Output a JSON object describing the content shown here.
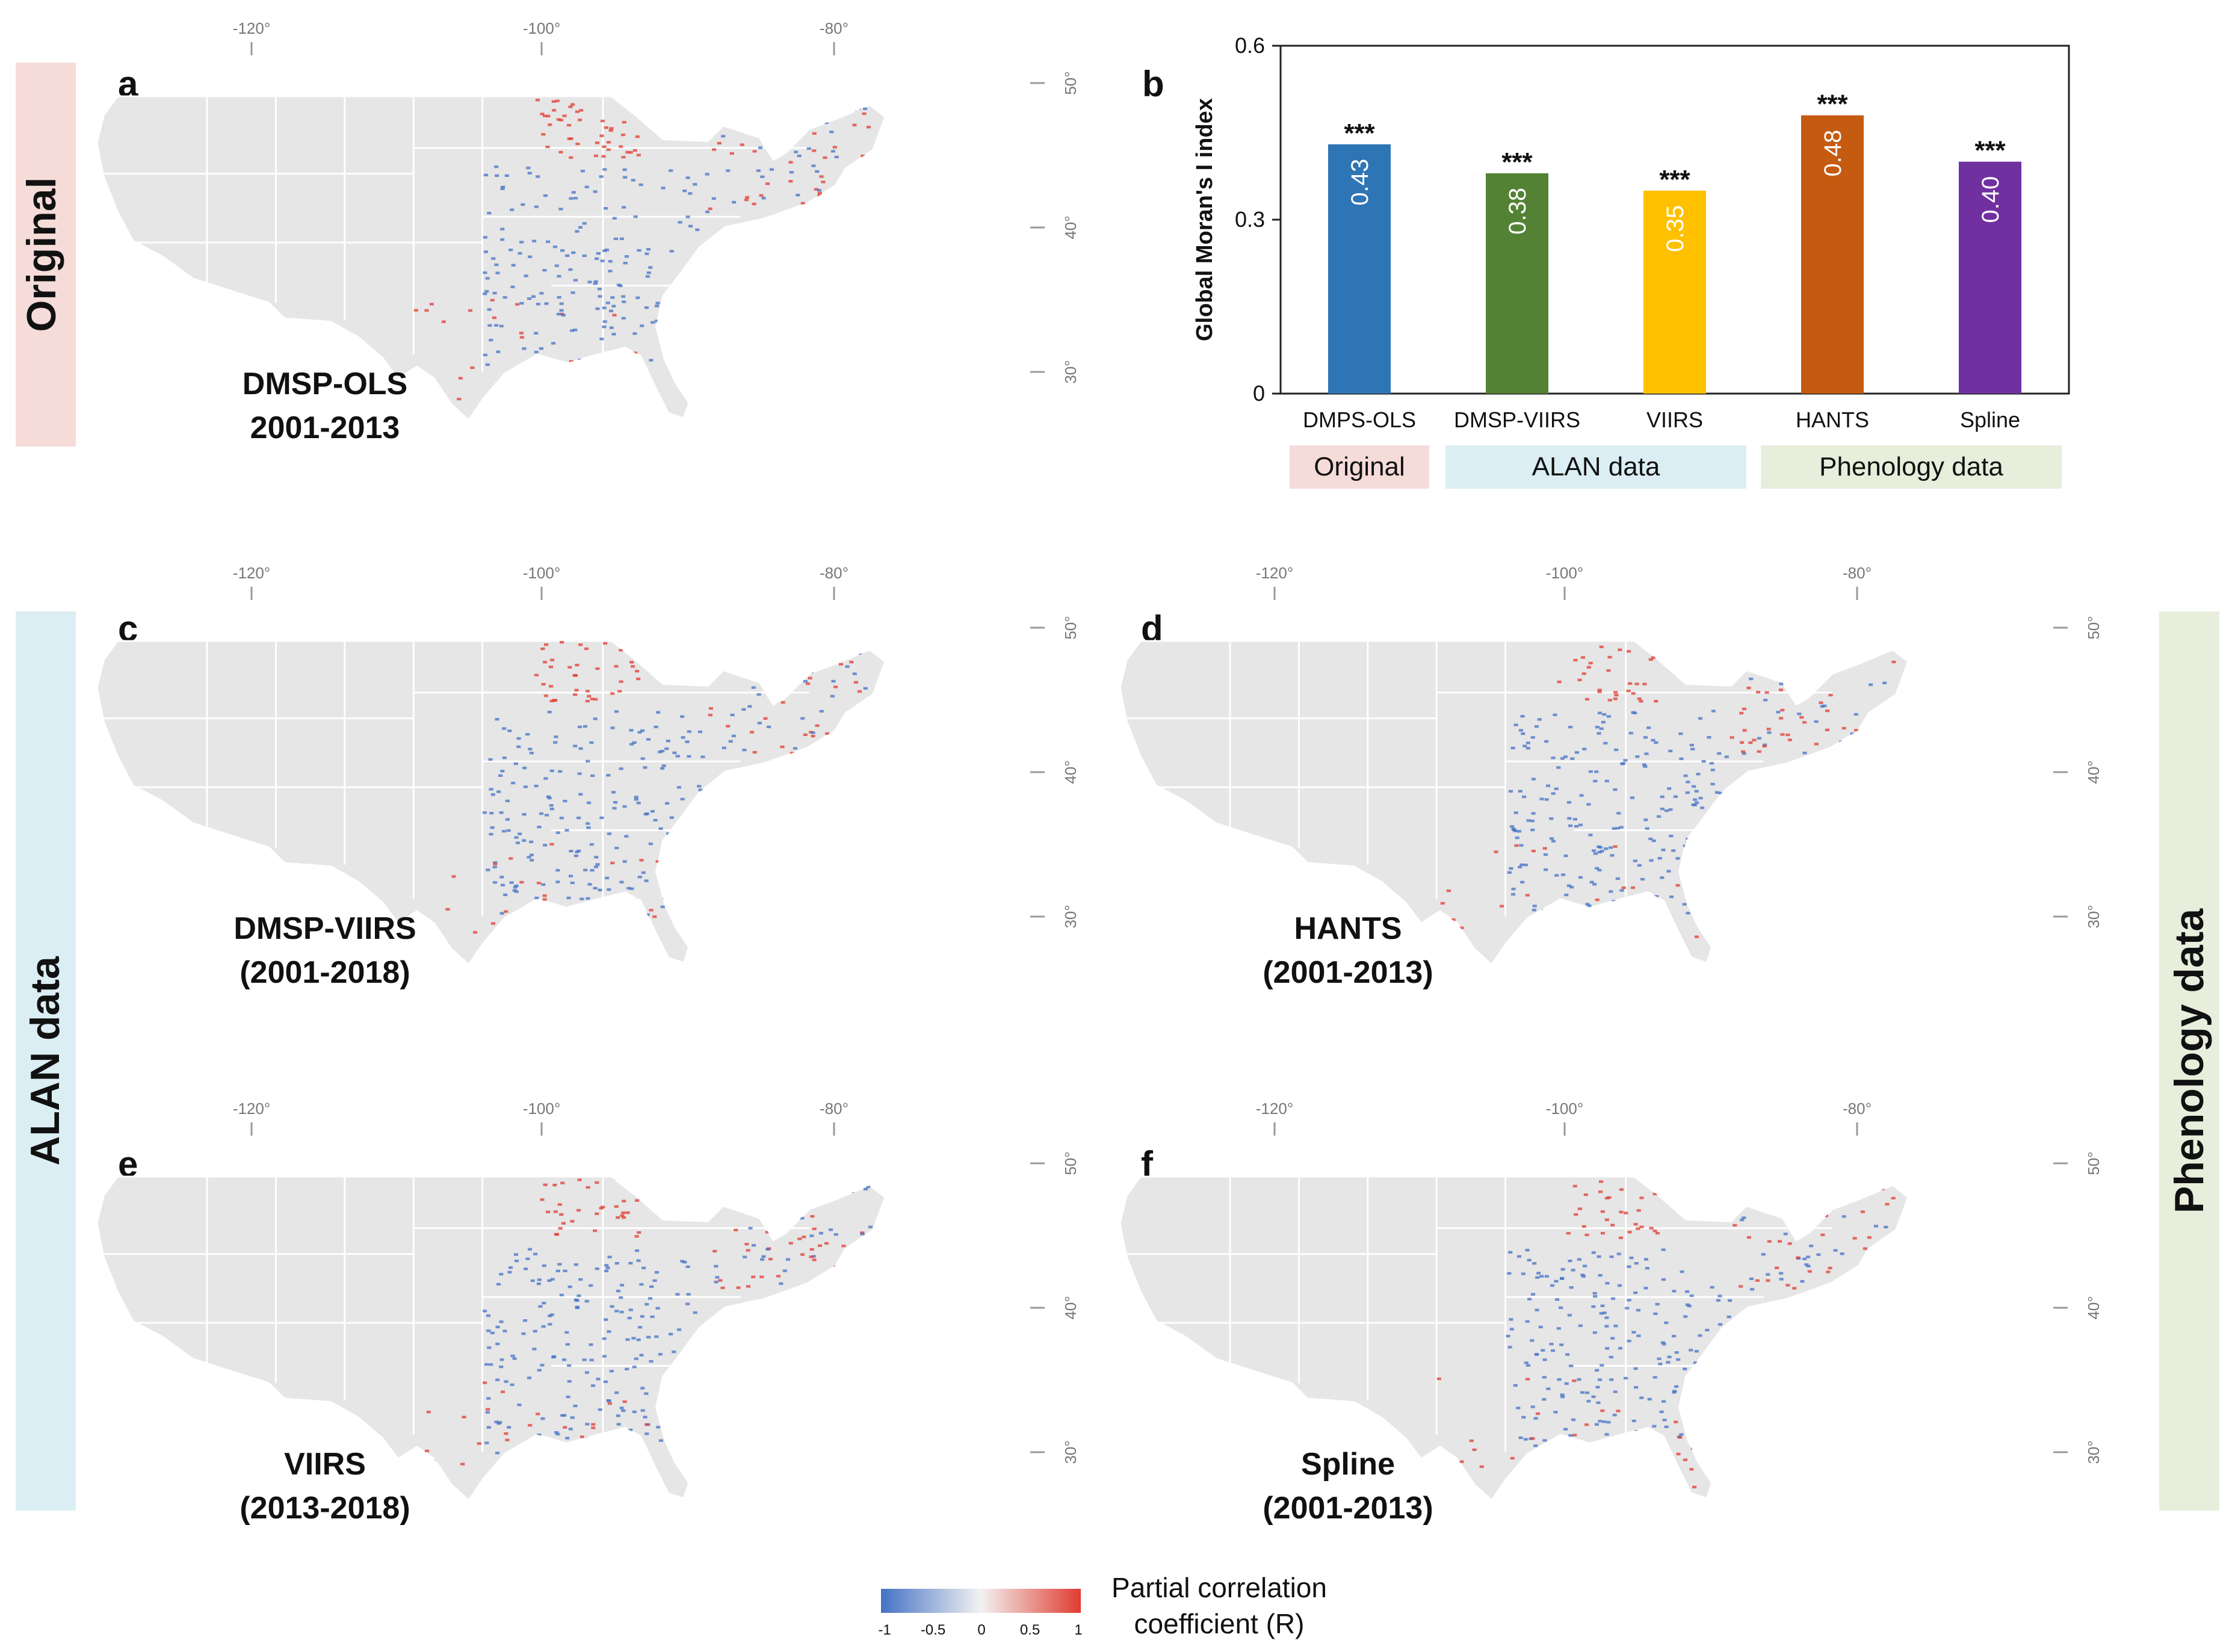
{
  "side_labels": {
    "original": "Original",
    "alan": "ALAN data",
    "phenology": "Phenology data"
  },
  "maps": [
    {
      "letter": "a",
      "line1": "DMSP-OLS",
      "line2": "2001-2013"
    },
    {
      "letter": "c",
      "line1": "DMSP-VIIRS",
      "line2": "(2001-2018)"
    },
    {
      "letter": "d",
      "line1": "HANTS",
      "line2": "(2001-2013)"
    },
    {
      "letter": "e",
      "line1": "VIIRS",
      "line2": "(2013-2018)"
    },
    {
      "letter": "f",
      "line1": "Spline",
      "line2": "(2001-2013)"
    }
  ],
  "axis_ticks": {
    "lon": [
      "-120°",
      "-100°",
      "-80°"
    ],
    "lat": [
      "50°",
      "40°",
      "30°"
    ]
  },
  "chart_panel_letter": "b",
  "chart_data": {
    "type": "bar",
    "title": "",
    "xlabel": "",
    "ylabel": "Global Moran's I index",
    "ylim": [
      0,
      0.6
    ],
    "yticks": [
      0,
      0.3,
      0.6
    ],
    "ytick_labels": [
      "0",
      "0.3",
      "0.6"
    ],
    "categories": [
      "DMPS-OLS",
      "DMSP-VIIRS",
      "VIIRS",
      "HANTS",
      "Spline"
    ],
    "values": [
      0.43,
      0.38,
      0.35,
      0.48,
      0.4
    ],
    "value_labels": [
      "0.43",
      "0.38",
      "0.35",
      "0.48",
      "0.40"
    ],
    "significance": [
      "***",
      "***",
      "***",
      "***",
      "***"
    ],
    "colors": [
      "#2e75b6",
      "#548235",
      "#ffc000",
      "#c55a11",
      "#7030a0"
    ],
    "groups": [
      {
        "label": "Original",
        "members": [
          "DMPS-OLS"
        ],
        "color": "#f5dcd9"
      },
      {
        "label": "ALAN data",
        "members": [
          "DMSP-VIIRS",
          "VIIRS"
        ],
        "color": "#dbeef3"
      },
      {
        "label": "Phenology data",
        "members": [
          "HANTS",
          "Spline"
        ],
        "color": "#e8eedc"
      }
    ]
  },
  "legend": {
    "title_line1": "Partial correlation",
    "title_line2": "coefficient (R)",
    "ticks": [
      "-1",
      "-0.5",
      "0",
      "0.5",
      "1"
    ],
    "color_low": "#4472c4",
    "color_mid": "#f2f2f2",
    "color_high": "#e03c31"
  },
  "colors": {
    "original_band": "#f5dcd9",
    "alan_band": "#dbeef3",
    "phenology_band": "#e8eedc",
    "land": "#e6e6e6"
  }
}
